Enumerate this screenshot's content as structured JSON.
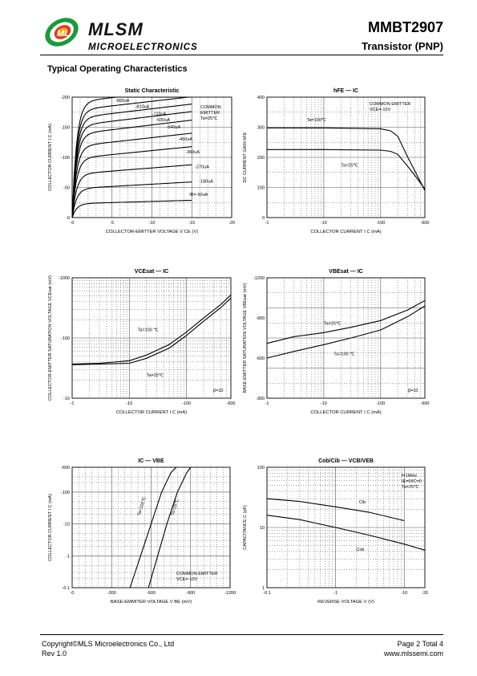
{
  "header": {
    "brand": "MLSM",
    "brand_sub": "MICROELECTRONICS",
    "part_number": "MMBT2907",
    "part_type": "Transistor (PNP)",
    "logo_colors": {
      "outer": "#1a9a3a",
      "inner": "#e23a26",
      "gold": "#e8a317"
    }
  },
  "section_title": "Typical Operating Characteristics",
  "footer": {
    "copyright": "Copyright©MLS Microelectronics Co., Ltd",
    "rev": "Rev 1.0",
    "page": "Page 2 Total 4",
    "website": "www.mlssemi.com"
  },
  "chart_data": [
    {
      "id": "c1",
      "type": "line",
      "title": "Static Characteristic",
      "xlabel": "COLLECTOR-EMITTER VOLTAGE V_CE (V)",
      "ylabel": "COLLECTOR CURRENT I_C (mA)",
      "xlim": [
        0,
        -20
      ],
      "ylim": [
        0,
        -200
      ],
      "x_ticks": [
        "-0",
        "-5",
        "-10",
        "-15",
        "-20"
      ],
      "y_ticks": [
        "-0",
        "-50",
        "-100",
        "-150",
        "-200"
      ],
      "annotation": [
        "COMMON",
        "EMITTER",
        "Ta=25℃"
      ],
      "series": [
        {
          "name": "-900uA",
          "plateau": -192
        },
        {
          "name": "-810uA",
          "plateau": -178
        },
        {
          "name": "-720uA",
          "plateau": -165
        },
        {
          "name": "-630uA",
          "plateau": -152
        },
        {
          "name": "-540uA",
          "plateau": -138
        },
        {
          "name": "-450uA",
          "plateau": -118
        },
        {
          "name": "-360uA",
          "plateau": -98
        },
        {
          "name": "-270uA",
          "plateau": -72
        },
        {
          "name": "-180uA",
          "plateau": -48
        },
        {
          "name": "IB=-90uA",
          "plateau": -23
        }
      ]
    },
    {
      "id": "c2",
      "type": "line",
      "title": "hFE — IC",
      "xlabel": "COLLECTOR CURRENT I_C (mA)",
      "ylabel": "DC CURRENT GAIN hFE",
      "x_scale": "log",
      "xlim": [
        -1,
        -600
      ],
      "ylim": [
        0,
        400
      ],
      "x_ticks": [
        "-1",
        "-10",
        "-100",
        "-600"
      ],
      "y_ticks": [
        "0",
        "100",
        "200",
        "300",
        "400"
      ],
      "annotation": [
        "COMMON EMITTER",
        "VCE=-10V"
      ],
      "series": [
        {
          "name": "Ta=100℃",
          "x": [
            -1,
            -10,
            -100,
            -150,
            -200,
            -300,
            -400,
            -600
          ],
          "y": [
            298,
            298,
            295,
            288,
            270,
            200,
            155,
            90
          ]
        },
        {
          "name": "Ta=25℃",
          "x": [
            -1,
            -10,
            -100,
            -150,
            -200,
            -300,
            -400,
            -600
          ],
          "y": [
            226,
            226,
            224,
            220,
            210,
            170,
            140,
            95
          ]
        }
      ]
    },
    {
      "id": "c3",
      "type": "line",
      "title": "VCEsat — IC",
      "xlabel": "COLLECTOR CURRENT I_C (mA)",
      "ylabel": "COLLECTOR-EMITTER SATURATION VOLTAGE VCEsat (mV)",
      "x_scale": "log",
      "y_scale": "log",
      "xlim": [
        -1,
        -600
      ],
      "ylim": [
        -10,
        -1000
      ],
      "x_ticks": [
        "-1",
        "-10",
        "-100",
        "-600"
      ],
      "y_ticks": [
        "-10",
        "-100",
        "-1000"
      ],
      "annotation": [
        "β=10"
      ],
      "series": [
        {
          "name": "Ta=100 ℃",
          "x": [
            -1,
            -3,
            -10,
            -20,
            -50,
            -100,
            -200,
            -400,
            -600
          ],
          "y": [
            -37,
            -38,
            -42,
            -52,
            -78,
            -125,
            -215,
            -360,
            -520
          ]
        },
        {
          "name": "Ta=25℃",
          "x": [
            -1,
            -3,
            -10,
            -20,
            -50,
            -100,
            -200,
            -400,
            -600
          ],
          "y": [
            -36,
            -37,
            -38,
            -46,
            -68,
            -110,
            -190,
            -320,
            -460
          ]
        }
      ]
    },
    {
      "id": "c4",
      "type": "line",
      "title": "VBEsat — IC",
      "xlabel": "COLLECTOR CURRENT I_C (mA)",
      "ylabel": "BASE-EMITTER SATURATION VOLTAGE VBEsat (mV)",
      "x_scale": "log",
      "xlim": [
        -1,
        -600
      ],
      "ylim": [
        -300,
        -1200
      ],
      "x_ticks": [
        "-1",
        "-10",
        "-100",
        "-600"
      ],
      "y_ticks": [
        "-300",
        "-600",
        "-900",
        "-1200"
      ],
      "annotation": [
        "β=10"
      ],
      "series": [
        {
          "name": "Ta=25℃",
          "x": [
            -1,
            -3,
            -10,
            -30,
            -100,
            -300,
            -600
          ],
          "y": [
            -710,
            -760,
            -790,
            -830,
            -880,
            -960,
            -1030
          ]
        },
        {
          "name": "Ta=100 ℃",
          "x": [
            -1,
            -3,
            -10,
            -30,
            -100,
            -300,
            -600
          ],
          "y": [
            -600,
            -650,
            -700,
            -750,
            -810,
            -910,
            -990
          ]
        }
      ]
    },
    {
      "id": "c5",
      "type": "line",
      "title": "IC — VBE",
      "xlabel": "BASE-EMMITER VOLTAGE V_BE (mV)",
      "ylabel": "COLLECTOR CURRENT I_C (mA)",
      "y_scale": "log",
      "xlim": [
        0,
        -1200
      ],
      "ylim": [
        -0.1,
        -600
      ],
      "x_ticks": [
        "-0",
        "-300",
        "-600",
        "-900",
        "-1200"
      ],
      "y_ticks": [
        "-0.1",
        "-1",
        "-10",
        "-100",
        "-600"
      ],
      "annotation": [
        "COMMON EMITTER",
        "VCE=-10V"
      ],
      "series": [
        {
          "name": "Ta=100℃",
          "x": [
            -440,
            -520,
            -600,
            -680,
            -750,
            -790
          ],
          "y": [
            -0.1,
            -1,
            -10,
            -100,
            -400,
            -600
          ]
        },
        {
          "name": "Ta=25℃",
          "x": [
            -580,
            -650,
            -720,
            -800,
            -870,
            -900
          ],
          "y": [
            -0.1,
            -1,
            -10,
            -100,
            -400,
            -600
          ]
        }
      ]
    },
    {
      "id": "c6",
      "type": "line",
      "title": "Cob/Cib — VCB/VEB",
      "xlabel": "REVERSE VOLTAGE V (V)",
      "ylabel": "CAPACITANCE C (pF)",
      "x_scale": "log",
      "y_scale": "log",
      "xlim": [
        -0.1,
        -20
      ],
      "ylim": [
        1,
        100
      ],
      "x_ticks": [
        "-0.1",
        "-1",
        "-10",
        "-20"
      ],
      "y_ticks": [
        "1",
        "10",
        "100"
      ],
      "annotation": [
        "f=1MHz",
        "IE=0/IC=0",
        "Ta=25℃"
      ],
      "series": [
        {
          "name": "Cib",
          "x": [
            -0.1,
            -0.3,
            -1,
            -3,
            -10
          ],
          "y": [
            30,
            27,
            22,
            18,
            13
          ]
        },
        {
          "name": "Cob",
          "x": [
            -0.1,
            -0.3,
            -1,
            -3,
            -10,
            -20
          ],
          "y": [
            16,
            13.5,
            10,
            7.5,
            5.3,
            4.2
          ]
        }
      ]
    }
  ]
}
